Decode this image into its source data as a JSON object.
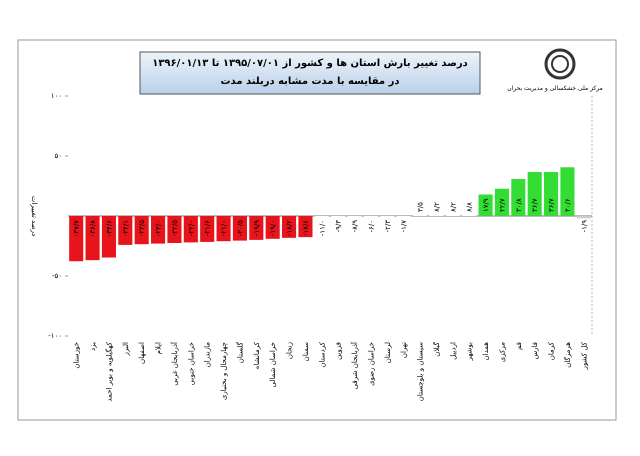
{
  "chart_data": {
    "type": "bar",
    "title": "درصد تغییر بارش استان ها و کشور از ۱۳۹۵/۰۷/۰۱ تا ۱۳۹۶/۰۱/۱۳",
    "subtitle": "در مقایسه با مدت مشابه دربلند مدت",
    "logo_text": "مرکز ملی خشکسالی و مدیریت بحران",
    "y_label": "درصد تغییرات",
    "categories": [
      "خوزستان",
      "یزد",
      "کهگیلویه و بویر احمد",
      "البرز",
      "اصفهان",
      "ایلام",
      "آذربایجان غربی",
      "خراسان جنوبی",
      "مازندران",
      "چهارمحال و بختیاری",
      "گلستان",
      "کرمانشاه",
      "خراسان شمالی",
      "زنجان",
      "سمنان",
      "کردستان",
      "قزوین",
      "آذربایجان شرقی",
      "خراسان رضوی",
      "لرستان",
      "تهران",
      "سیستان و بلوچستان",
      "گیلان",
      "اردبیل",
      "بوشهر",
      "همدان",
      "مرکزی",
      "قم",
      "فارس",
      "کرمان",
      "هرمزگان",
      "کل کشور"
    ],
    "values": [
      -37.7,
      -36.8,
      -34.6,
      -24.1,
      -23.5,
      -23.0,
      -22.5,
      -22.0,
      -21.6,
      -21.0,
      -20.5,
      -19.9,
      -19.0,
      -18.2,
      -17.6,
      -11.0,
      -9.3,
      -8.9,
      -6.0,
      -2.3,
      -1.7,
      3.5,
      8.2,
      8.2,
      8.8,
      17.9,
      22.7,
      30.8,
      36.7,
      36.7,
      40.6,
      -1.9
    ],
    "value_labels": [
      "-۳۷/۷",
      "-۳۶/۸",
      "-۳۴/۶",
      "-۲۴/۱",
      "-۲۳/۵",
      "-۲۳/۰",
      "-۲۲/۵",
      "-۲۲/۰",
      "-۲۱/۶",
      "-۲۱/۰",
      "-۲۰/۵",
      "-۱۹/۹",
      "-۱۹/۰",
      "-۱۸/۲",
      "-۱۷/۶",
      "-۱۱/۰",
      "-۹/۳",
      "-۸/۹",
      "-۶/۰",
      "-۲/۳",
      "-۱/۷",
      "۳/۵",
      "۸/۲",
      "۸/۲",
      "۸/۸",
      "۱۷/۹",
      "۲۲/۷",
      "۳۰/۸",
      "۳۶/۷",
      "۳۶/۷",
      "۴۰/۶",
      "-۱/۹"
    ],
    "colors": [
      "#e8141c",
      "#e8141c",
      "#e8141c",
      "#e8141c",
      "#e8141c",
      "#e8141c",
      "#e8141c",
      "#e8141c",
      "#e8141c",
      "#e8141c",
      "#e8141c",
      "#e8141c",
      "#e8141c",
      "#e8141c",
      "#e8141c",
      "#ffffff",
      "#ffffff",
      "#ffffff",
      "#ffffff",
      "#ffffff",
      "#ffffff",
      "#ffffff",
      "#ffffff",
      "#ffffff",
      "#ffffff",
      "#33dd33",
      "#33dd33",
      "#33dd33",
      "#33dd33",
      "#33dd33",
      "#33dd33",
      "#cccccc"
    ],
    "ylim": [
      -100,
      100
    ],
    "yticks": [
      {
        "value": 100,
        "label": "۱۰۰"
      },
      {
        "value": 50,
        "label": "۵۰"
      },
      {
        "value": -50,
        "label": "-۵۰"
      },
      {
        "value": -100,
        "label": "-۱۰۰"
      }
    ],
    "grid": true
  }
}
